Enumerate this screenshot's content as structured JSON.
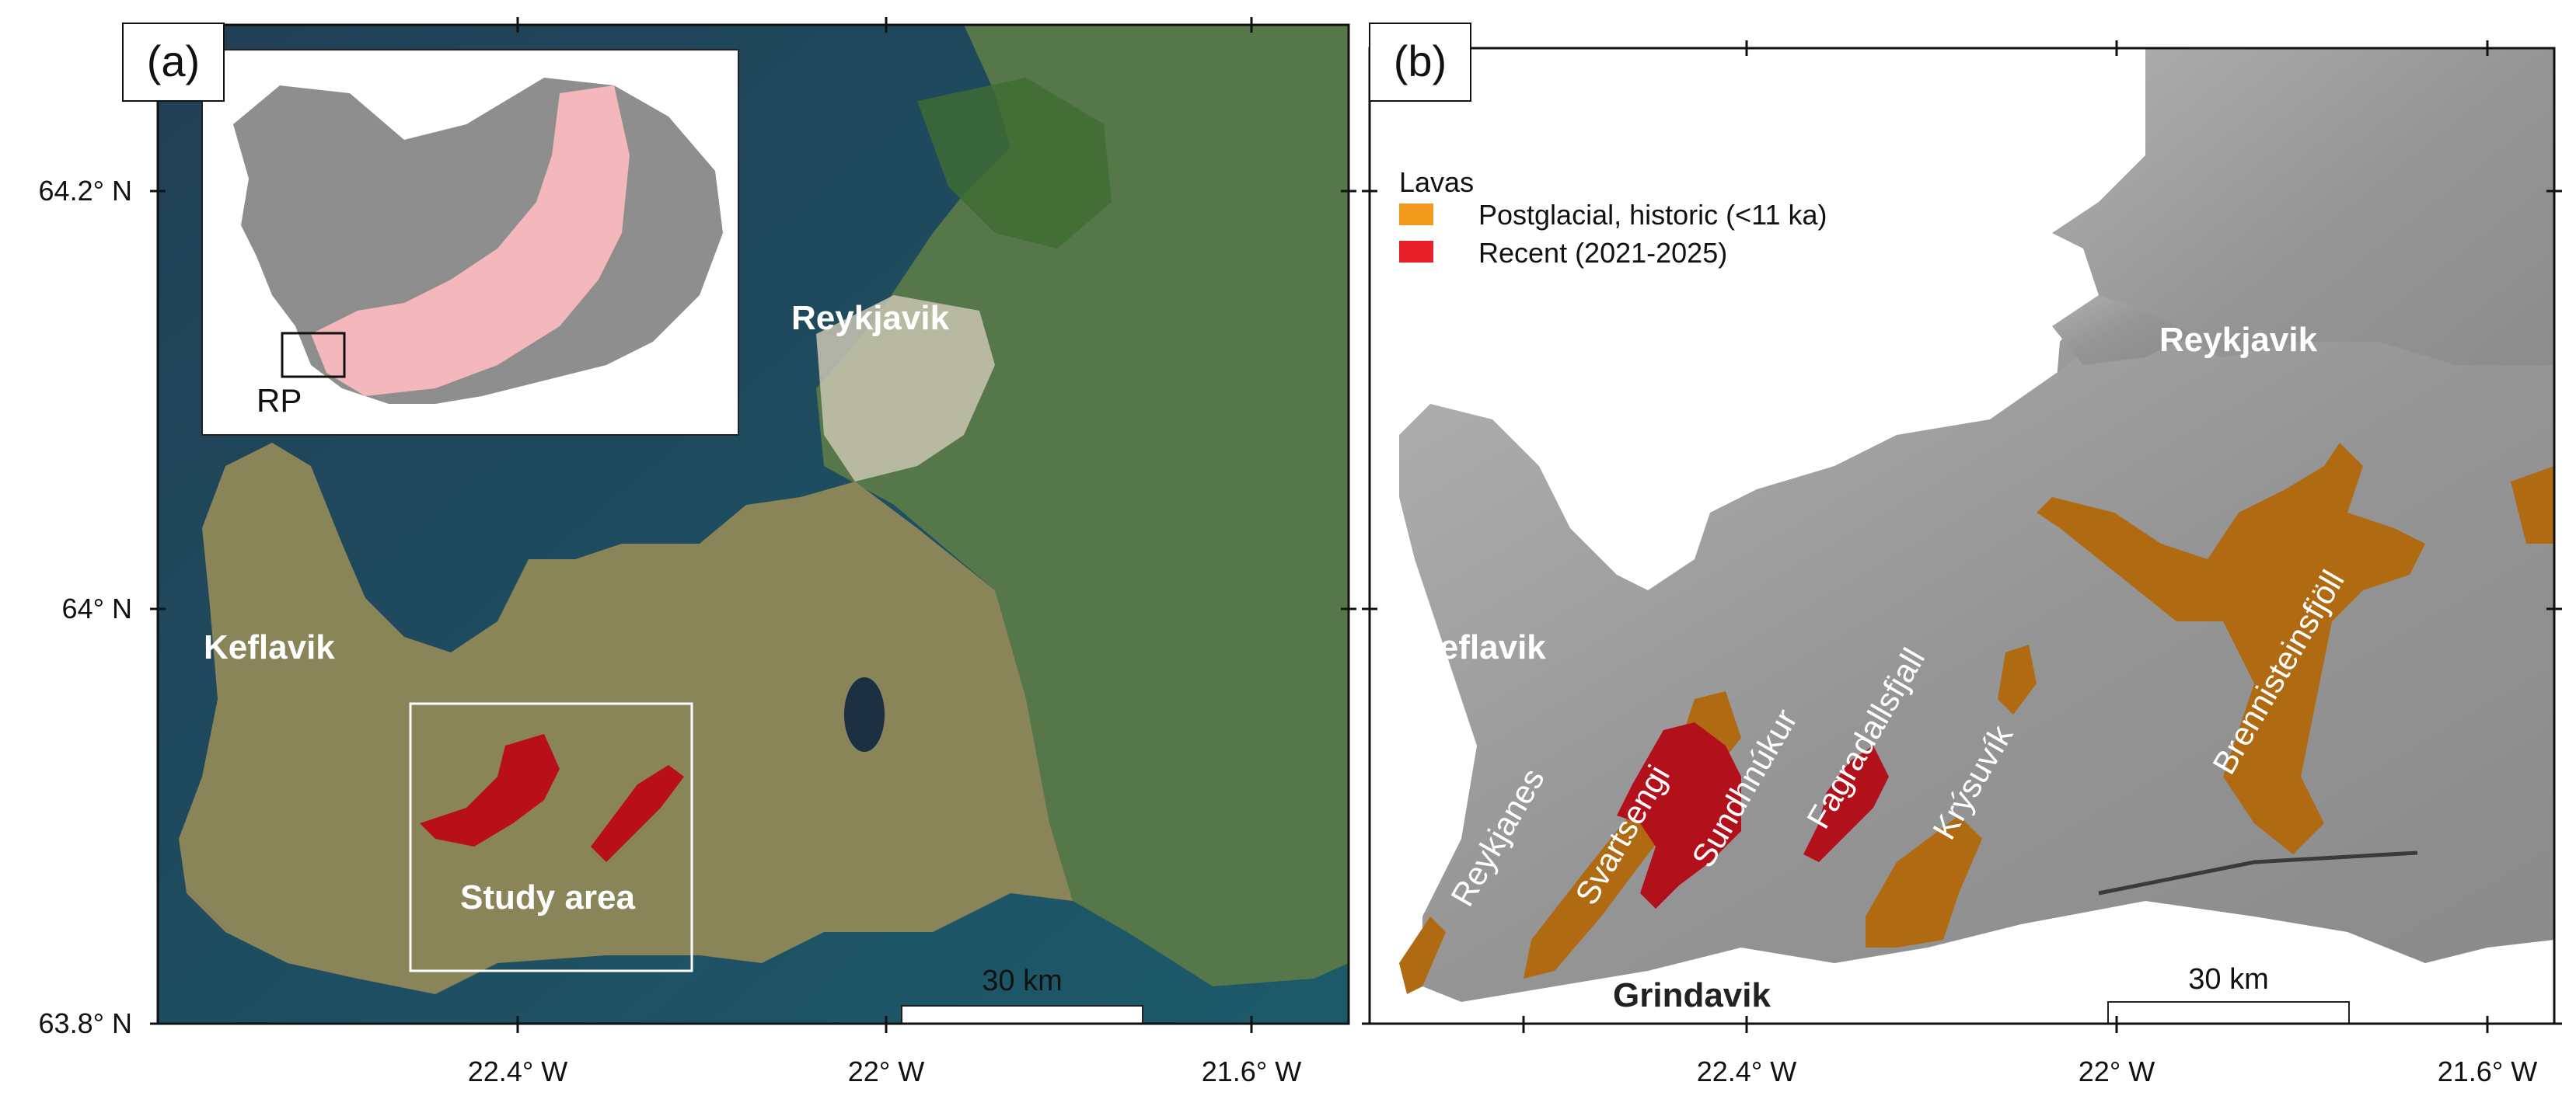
{
  "panel_a": {
    "label": "(a)",
    "y_ticks": [
      "64.2° N",
      "64° N",
      "63.8° N"
    ],
    "x_ticks": [
      "22.4° W",
      "22° W",
      "21.6° W"
    ],
    "places": {
      "reykjavik": "Reykjavik",
      "keflavik": "Keflavik",
      "study_area": "Study area"
    },
    "inset_label": "RP",
    "scale_bar": "30 km",
    "colors": {
      "sea": "#1f4a62",
      "land": "#8f8a62",
      "vegetation": "#4f7a3a",
      "lava": "#b80f1a",
      "inset_volcanic_zone": "#f4b8bc"
    }
  },
  "panel_b": {
    "label": "(b)",
    "x_ticks": [
      "22.4° W",
      "22° W",
      "21.6° W"
    ],
    "legend": {
      "title": "Lavas",
      "items": [
        {
          "label": "Postglacial, historic (<11 ka)",
          "color": "#f29a1c"
        },
        {
          "label": "Recent (2021-2025)",
          "color": "#e8202a"
        }
      ]
    },
    "places": {
      "reykjavik": "Reykjavik",
      "keflavik": "Keflavik",
      "grindavik": "Grindavik"
    },
    "volcanic_systems": [
      "Reykjanes",
      "Svartsengi",
      "Sundhnúkur",
      "Fagradallsfjall",
      "Krýsuvík",
      "Brennisteinsfjöll"
    ],
    "scale_bar": "30 km",
    "colors": {
      "hillshade": "#9a9a9a",
      "postglacial_lava": "#b06a12",
      "recent_lava": "#b2101a"
    }
  }
}
